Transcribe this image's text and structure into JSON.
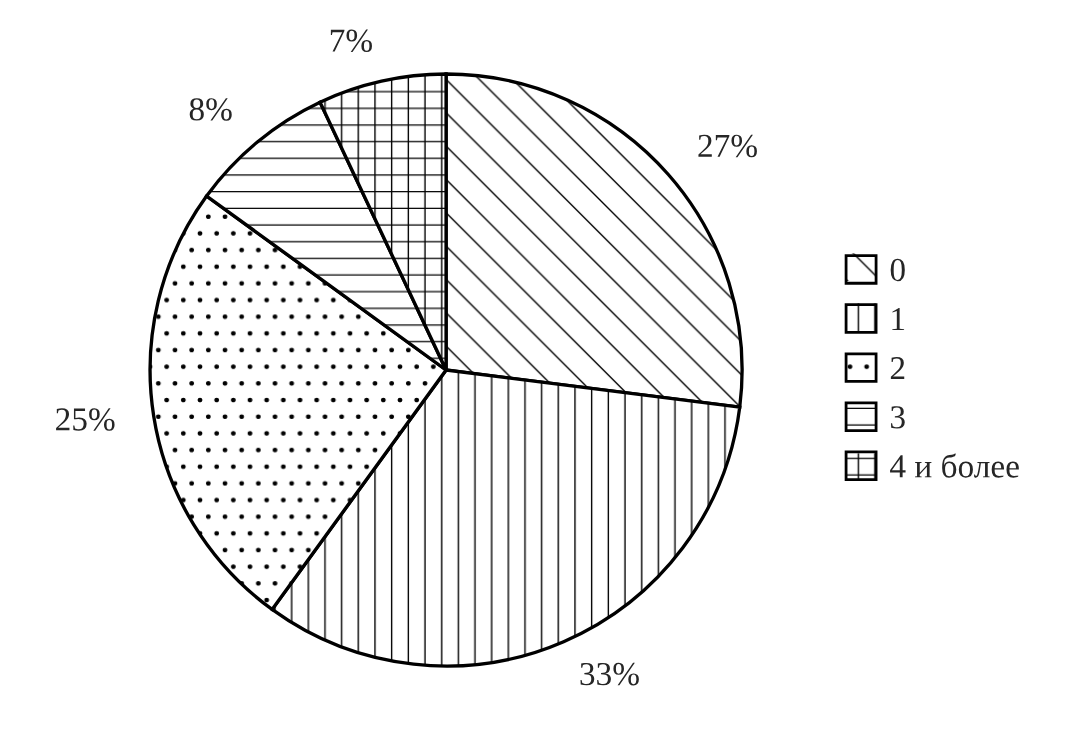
{
  "chart_data": {
    "type": "pie",
    "categories": [
      "0",
      "1",
      "2",
      "3",
      "4 и более"
    ],
    "values": [
      27,
      33,
      25,
      8,
      7
    ],
    "value_labels": [
      "27%",
      "33%",
      "25%",
      "8%",
      "7%"
    ],
    "colors": [
      "#ffffff",
      "#ffffff",
      "#ffffff",
      "#ffffff",
      "#ffffff"
    ],
    "legend": "right"
  }
}
